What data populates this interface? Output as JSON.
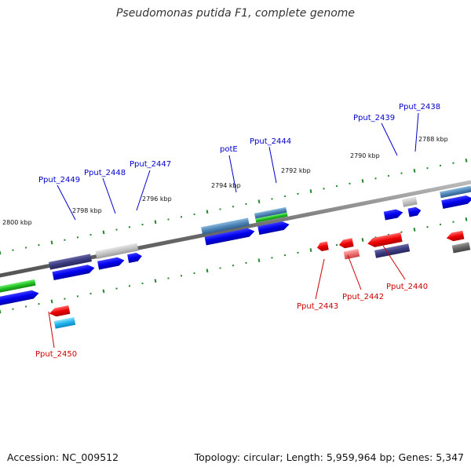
{
  "title": "Pseudomonas putida F1, complete genome",
  "footer": {
    "accession": "Accession: NC_009512",
    "stats": "Topology: circular; Length: 5,959,964 bp; Genes: 5,347"
  },
  "colors": {
    "forward_label": "#0000cc",
    "reverse_label": "#cc0000",
    "tick": "#22882a",
    "backbone": "#777777"
  },
  "kbp_labels": [
    "2800 kbp",
    "2798 kbp",
    "2796 kbp",
    "2794 kbp",
    "2792 kbp",
    "2790 kbp",
    "2788 kbp"
  ],
  "forward_gene_labels": [
    "Pput_2449",
    "Pput_2448",
    "Pput_2447",
    "potE",
    "Pput_2444",
    "Pput_2439",
    "Pput_2438"
  ],
  "reverse_gene_labels": [
    "Pput_2450",
    "Pput_2443",
    "Pput_2442",
    "Pput_2440"
  ]
}
